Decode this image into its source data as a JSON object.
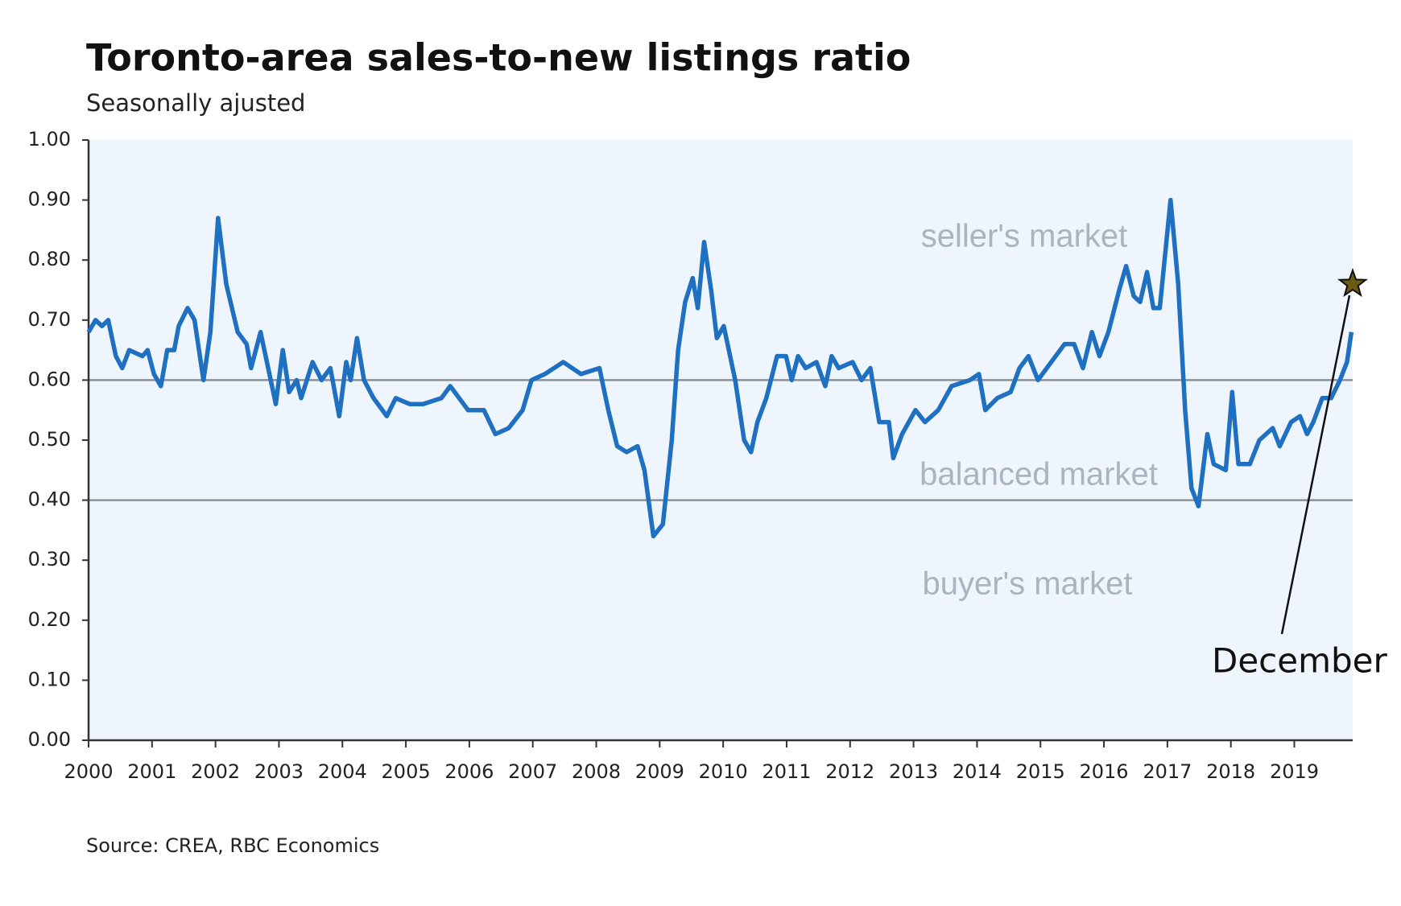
{
  "chart_data": {
    "type": "line",
    "title": "Toronto-area sales-to-new listings ratio",
    "subtitle": "Seasonally ajusted",
    "source": "Source: CREA, RBC Economics",
    "color": "#1f70c1",
    "x": [
      2000.0,
      2000.11,
      2000.21,
      2000.31,
      2000.43,
      2000.53,
      2000.64,
      2000.85,
      2000.93,
      2001.03,
      2001.14,
      2001.24,
      2001.35,
      2001.42,
      2001.56,
      2001.67,
      2001.81,
      2001.92,
      2002.04,
      2002.17,
      2002.35,
      2002.49,
      2002.56,
      2002.71,
      2002.81,
      2002.95,
      2003.06,
      2003.16,
      2003.28,
      2003.35,
      2003.53,
      2003.67,
      2003.81,
      2003.95,
      2004.06,
      2004.13,
      2004.23,
      2004.34,
      2004.49,
      2004.7,
      2004.84,
      2005.06,
      2005.27,
      2005.56,
      2005.7,
      2005.98,
      2006.23,
      2006.41,
      2006.62,
      2006.84,
      2006.98,
      2007.19,
      2007.48,
      2007.76,
      2008.05,
      2008.19,
      2008.33,
      2008.48,
      2008.65,
      2008.76,
      2008.9,
      2009.05,
      2009.19,
      2009.29,
      2009.4,
      2009.52,
      2009.6,
      2009.7,
      2009.81,
      2009.9,
      2010.01,
      2010.19,
      2010.33,
      2010.44,
      2010.54,
      2010.68,
      2010.85,
      2010.99,
      2011.08,
      2011.18,
      2011.3,
      2011.47,
      2011.61,
      2011.71,
      2011.82,
      2012.04,
      2012.18,
      2012.32,
      2012.46,
      2012.61,
      2012.68,
      2012.82,
      2013.03,
      2013.18,
      2013.39,
      2013.6,
      2013.89,
      2014.03,
      2014.13,
      2014.32,
      2014.53,
      2014.67,
      2014.81,
      2014.96,
      2015.17,
      2015.38,
      2015.53,
      2015.67,
      2015.81,
      2015.93,
      2016.07,
      2016.24,
      2016.35,
      2016.47,
      2016.57,
      2016.68,
      2016.78,
      2016.88,
      2017.05,
      2017.17,
      2017.28,
      2017.38,
      2017.49,
      2017.63,
      2017.73,
      2017.92,
      2018.02,
      2018.12,
      2018.3,
      2018.45,
      2018.66,
      2018.77,
      2018.95,
      2019.09,
      2019.2,
      2019.3,
      2019.44,
      2019.58,
      2019.72,
      2019.83,
      2019.9
    ],
    "values": [
      0.68,
      0.7,
      0.69,
      0.7,
      0.64,
      0.62,
      0.65,
      0.64,
      0.65,
      0.61,
      0.59,
      0.65,
      0.65,
      0.69,
      0.72,
      0.7,
      0.6,
      0.68,
      0.87,
      0.76,
      0.68,
      0.66,
      0.62,
      0.68,
      0.63,
      0.56,
      0.65,
      0.58,
      0.6,
      0.57,
      0.63,
      0.6,
      0.62,
      0.54,
      0.63,
      0.6,
      0.67,
      0.6,
      0.57,
      0.54,
      0.57,
      0.56,
      0.56,
      0.57,
      0.59,
      0.55,
      0.55,
      0.51,
      0.52,
      0.55,
      0.6,
      0.61,
      0.63,
      0.61,
      0.62,
      0.55,
      0.49,
      0.48,
      0.49,
      0.45,
      0.34,
      0.36,
      0.5,
      0.65,
      0.73,
      0.77,
      0.72,
      0.83,
      0.75,
      0.67,
      0.69,
      0.6,
      0.5,
      0.48,
      0.53,
      0.57,
      0.64,
      0.64,
      0.6,
      0.64,
      0.62,
      0.63,
      0.59,
      0.64,
      0.62,
      0.63,
      0.6,
      0.62,
      0.53,
      0.53,
      0.47,
      0.51,
      0.55,
      0.53,
      0.55,
      0.59,
      0.6,
      0.61,
      0.55,
      0.57,
      0.58,
      0.62,
      0.64,
      0.6,
      0.63,
      0.66,
      0.66,
      0.62,
      0.68,
      0.64,
      0.68,
      0.75,
      0.79,
      0.74,
      0.73,
      0.78,
      0.72,
      0.72,
      0.9,
      0.76,
      0.55,
      0.42,
      0.39,
      0.51,
      0.46,
      0.45,
      0.58,
      0.46,
      0.46,
      0.5,
      0.52,
      0.49,
      0.53,
      0.54,
      0.51,
      0.53,
      0.57,
      0.57,
      0.6,
      0.63,
      0.68
    ],
    "xlim": [
      2000,
      2019.92
    ],
    "xticks": [
      2000,
      2001,
      2002,
      2003,
      2004,
      2005,
      2006,
      2007,
      2008,
      2009,
      2010,
      2011,
      2012,
      2013,
      2014,
      2015,
      2016,
      2017,
      2018,
      2019
    ],
    "ylim": [
      0,
      1
    ],
    "yticks": [
      {
        "value": 0,
        "label": "0.00"
      },
      {
        "value": 0.1,
        "label": "0.10"
      },
      {
        "value": 0.2,
        "label": "0.20"
      },
      {
        "value": 0.3,
        "label": "0.30"
      },
      {
        "value": 0.4,
        "label": "0.40"
      },
      {
        "value": 0.5,
        "label": "0.50"
      },
      {
        "value": 0.6,
        "label": "0.60"
      },
      {
        "value": 0.7,
        "label": "0.70"
      },
      {
        "value": 0.8,
        "label": "0.80"
      },
      {
        "value": 0.9,
        "label": "0.90"
      },
      {
        "value": 1,
        "label": "1.00"
      }
    ],
    "reference_lines": [
      0.6,
      0.4
    ],
    "regions": [
      "seller's market",
      "balanced market",
      "buyer's market"
    ],
    "annotation": {
      "text": "December",
      "x": 2019.92,
      "value": 0.76
    }
  }
}
